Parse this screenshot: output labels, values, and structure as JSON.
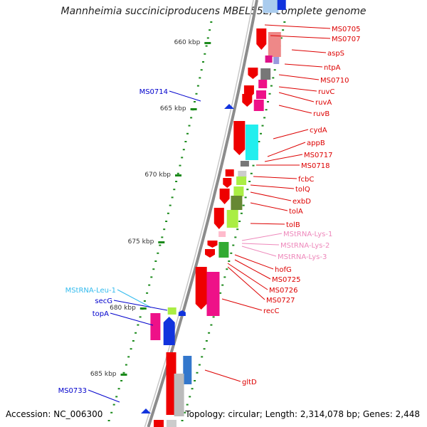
{
  "title": "Mannheimia succiniciproducens MBEL55E, complete genome",
  "footer": {
    "accession": "Accession: NC_006300",
    "summary": "Topology: circular; Length: 2,314,078 bp; Genes: 2,448"
  },
  "colors": {
    "backbone": "#8c8c8c",
    "tick": "#1b8a1b",
    "forward_gene_label": "#dd0000",
    "reverse_gene_label": "#0000cc",
    "trna_lys_label": "#ee88bb",
    "trna_leu_label": "#33bbee"
  },
  "scale_ticks": [
    {
      "label": "660 kbp"
    },
    {
      "label": "665 kbp"
    },
    {
      "label": "670 kbp"
    },
    {
      "label": "675 kbp"
    },
    {
      "label": "680 kbp"
    },
    {
      "label": "685 kbp"
    }
  ],
  "right_labels": [
    {
      "text": "MS0705",
      "color": "#dd0000"
    },
    {
      "text": "MS0707",
      "color": "#dd0000"
    },
    {
      "text": "aspS",
      "color": "#dd0000"
    },
    {
      "text": "ntpA",
      "color": "#dd0000"
    },
    {
      "text": "MS0710",
      "color": "#dd0000"
    },
    {
      "text": "ruvC",
      "color": "#dd0000"
    },
    {
      "text": "ruvA",
      "color": "#dd0000"
    },
    {
      "text": "ruvB",
      "color": "#dd0000"
    },
    {
      "text": "cydA",
      "color": "#dd0000"
    },
    {
      "text": "appB",
      "color": "#dd0000"
    },
    {
      "text": "MS0717",
      "color": "#dd0000"
    },
    {
      "text": "MS0718",
      "color": "#dd0000"
    },
    {
      "text": "fcbC",
      "color": "#dd0000"
    },
    {
      "text": "tolQ",
      "color": "#dd0000"
    },
    {
      "text": "exbD",
      "color": "#dd0000"
    },
    {
      "text": "tolA",
      "color": "#dd0000"
    },
    {
      "text": "tolB",
      "color": "#dd0000"
    },
    {
      "text": "MStRNA-Lys-1",
      "color": "#ee88bb"
    },
    {
      "text": "MStRNA-Lys-2",
      "color": "#ee88bb"
    },
    {
      "text": "MStRNA-Lys-3",
      "color": "#ee88bb"
    },
    {
      "text": "hofG",
      "color": "#dd0000"
    },
    {
      "text": "MS0725",
      "color": "#dd0000"
    },
    {
      "text": "MS0726",
      "color": "#dd0000"
    },
    {
      "text": "MS0727",
      "color": "#dd0000"
    },
    {
      "text": "recC",
      "color": "#dd0000"
    },
    {
      "text": "gltD",
      "color": "#dd0000"
    }
  ],
  "left_labels": [
    {
      "text": "MS0714",
      "color": "#0000cc"
    },
    {
      "text": "MStRNA-Leu-1",
      "color": "#33bbee"
    },
    {
      "text": "secG",
      "color": "#0000cc"
    },
    {
      "text": "topA",
      "color": "#0000cc"
    },
    {
      "text": "MS0733",
      "color": "#0000cc"
    }
  ]
}
